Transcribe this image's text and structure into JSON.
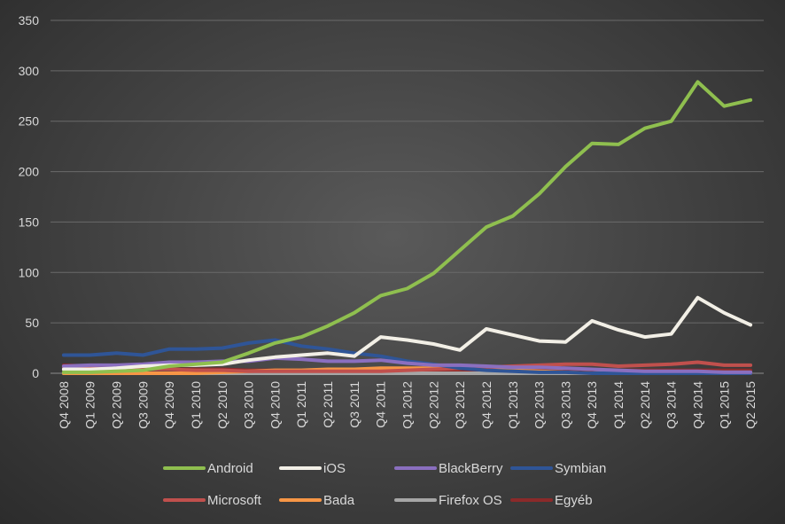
{
  "chart_data": {
    "type": "line",
    "title": "",
    "xlabel": "",
    "ylabel": "",
    "ylim": [
      0,
      350
    ],
    "yticks": [
      0,
      50,
      100,
      150,
      200,
      250,
      300,
      350
    ],
    "grid": true,
    "legend_placement": "bottom",
    "categories": [
      "Q4 2008",
      "Q1 2009",
      "Q2 2009",
      "Q3 2009",
      "Q4 2009",
      "Q1 2010",
      "Q2 2010",
      "Q3 2010",
      "Q4 2010",
      "Q1 2011",
      "Q2 2011",
      "Q3 2011",
      "Q4 2011",
      "Q1 2012",
      "Q2 2012",
      "Q3 2012",
      "Q4 2012",
      "Q1 2013",
      "Q2 2013",
      "Q3 2013",
      "Q4 2013",
      "Q1 2014",
      "Q2 2014",
      "Q3 2014",
      "Q4 2014",
      "Q1 2015",
      "Q2 2015"
    ],
    "series": [
      {
        "name": "Android",
        "color": "#8fbf4f",
        "values": [
          1,
          1,
          2,
          3,
          7,
          9,
          11,
          20,
          30,
          36,
          47,
          60,
          77,
          84,
          99,
          122,
          145,
          156,
          178,
          205,
          228,
          227,
          243,
          250,
          289,
          265,
          271
        ]
      },
      {
        "name": "iOS",
        "color": "#f2efe6",
        "values": [
          4,
          4,
          5,
          7,
          8,
          8,
          9,
          13,
          16,
          18,
          20,
          17,
          36,
          33,
          29,
          23,
          44,
          38,
          32,
          31,
          52,
          43,
          36,
          39,
          75,
          60,
          48
        ]
      },
      {
        "name": "BlackBerry",
        "color": "#8a6fbf",
        "values": [
          7,
          8,
          8,
          9,
          11,
          11,
          12,
          12,
          15,
          14,
          12,
          12,
          13,
          10,
          8,
          8,
          7,
          6,
          6,
          5,
          4,
          3,
          2,
          2,
          2,
          1,
          1
        ]
      },
      {
        "name": "Symbian",
        "color": "#2f5597",
        "values": [
          18,
          18,
          20,
          18,
          24,
          24,
          25,
          30,
          33,
          27,
          24,
          20,
          17,
          12,
          9,
          5,
          3,
          2,
          1,
          1,
          0,
          0,
          0,
          0,
          0,
          0,
          0
        ]
      },
      {
        "name": "Microsoft",
        "color": "#c0504d",
        "values": [
          6,
          5,
          4,
          4,
          4,
          3,
          3,
          2,
          2,
          2,
          2,
          2,
          2,
          3,
          4,
          5,
          6,
          7,
          8,
          9,
          9,
          7,
          8,
          9,
          11,
          8,
          8
        ]
      },
      {
        "name": "Bada",
        "color": "#f79646",
        "values": [
          0,
          0,
          0,
          0,
          0,
          0,
          1,
          2,
          3,
          3,
          4,
          4,
          5,
          5,
          5,
          5,
          5,
          3,
          2,
          1,
          0,
          0,
          0,
          0,
          0,
          0,
          0
        ]
      },
      {
        "name": "Firefox OS",
        "color": "#a6a6a6",
        "values": [
          0,
          0,
          0,
          0,
          0,
          0,
          0,
          0,
          0,
          0,
          0,
          0,
          0,
          0,
          0,
          0,
          0,
          0,
          0,
          0,
          0,
          1,
          1,
          1,
          1,
          1,
          1
        ]
      },
      {
        "name": "Egyéb",
        "color": "#8b2a2a",
        "values": [
          8,
          7,
          6,
          5,
          4,
          4,
          4,
          3,
          3,
          3,
          3,
          3,
          3,
          3,
          3,
          3,
          3,
          3,
          3,
          3,
          3,
          3,
          3,
          3,
          3,
          3,
          3
        ]
      }
    ]
  }
}
